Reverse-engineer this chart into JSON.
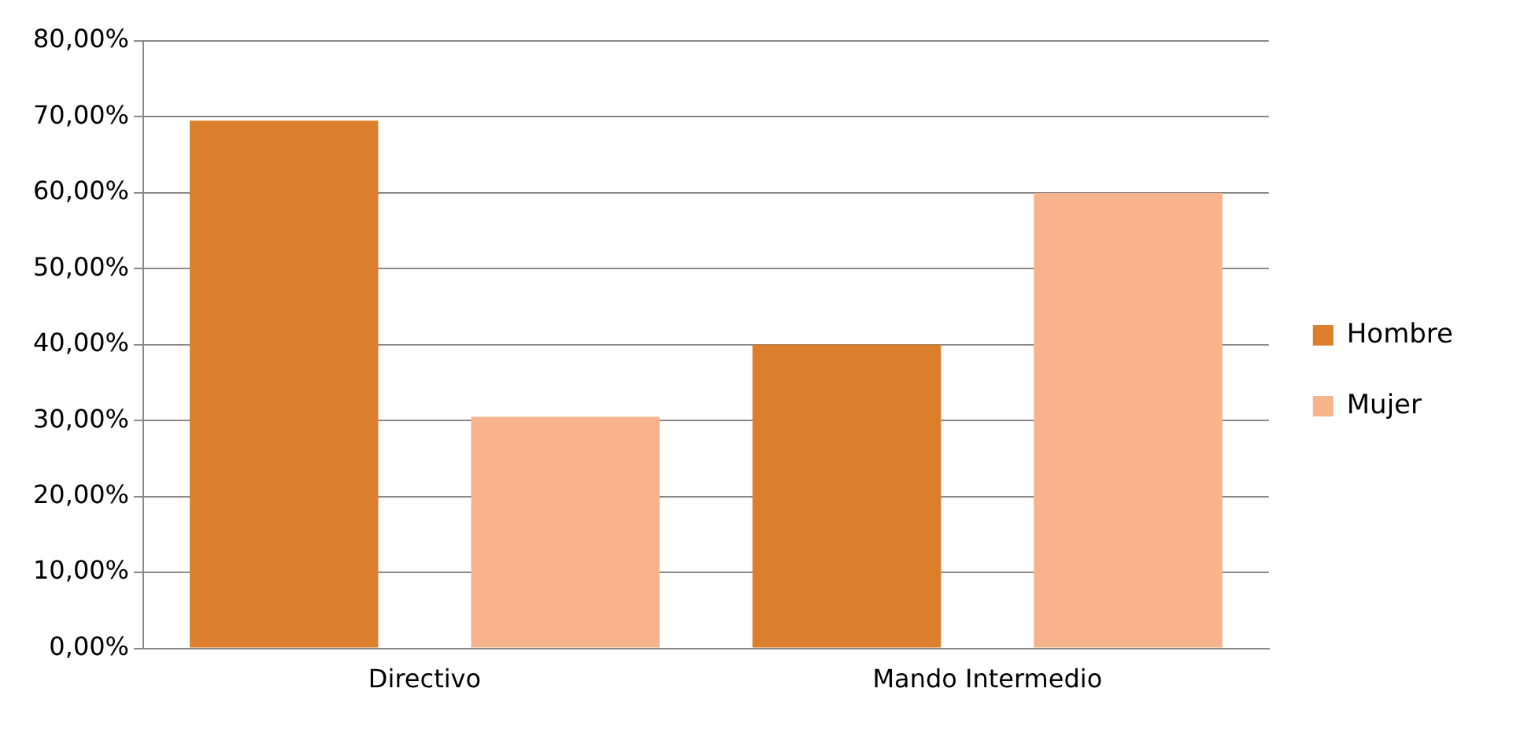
{
  "chart_data": {
    "type": "bar",
    "categories": [
      "Directivo",
      "Mando Intermedio"
    ],
    "series": [
      {
        "name": "Hombre",
        "color": "#dc7f2c",
        "values": [
          69.5,
          40
        ]
      },
      {
        "name": "Mujer",
        "color": "#f7b38c",
        "values": [
          30.5,
          60
        ]
      }
    ],
    "ylim": [
      0,
      80
    ],
    "yticks": [
      {
        "value": 0,
        "label": "0,00%"
      },
      {
        "value": 10,
        "label": "10,00%"
      },
      {
        "value": 20,
        "label": "20,00%"
      },
      {
        "value": 30,
        "label": "30,00%"
      },
      {
        "value": 40,
        "label": "40,00%"
      },
      {
        "value": 50,
        "label": "50,00%"
      },
      {
        "value": 60,
        "label": "60,00%"
      },
      {
        "value": 70,
        "label": "70,00%"
      },
      {
        "value": 80,
        "label": "80,00%"
      }
    ],
    "grid": "y",
    "legend": "right"
  }
}
